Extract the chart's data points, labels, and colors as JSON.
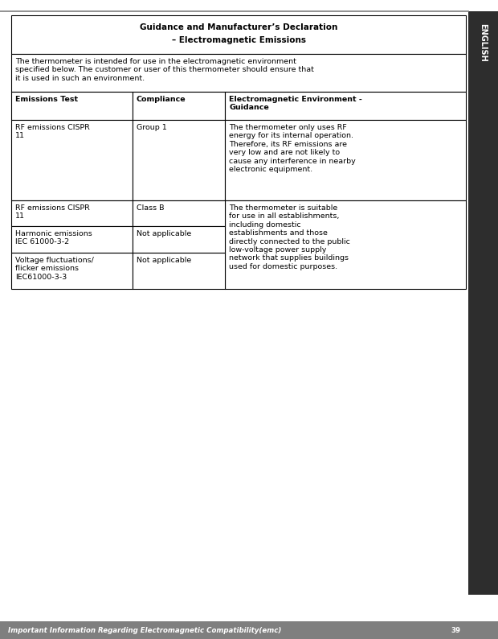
{
  "page_bg": "#ffffff",
  "footer_bg": "#7f7f7f",
  "footer_text": "Important Information Regarding Electromagnetic Compatibility(emc)",
  "footer_page_num": "39",
  "footer_text_color": "#ffffff",
  "sidebar_bg": "#2d2d2d",
  "sidebar_text": "ENGLISH",
  "sidebar_text_color": "#ffffff",
  "top_line_color": "#7f7f7f",
  "table_border_color": "#000000",
  "title_line1": "Guidance and Manufacturer’s Declaration",
  "title_line2": "– Electromagnetic Emissions",
  "intro_text_wrapped": "The thermometer is intended for use in the electromagnetic environment\nspecified below. The customer or user of this thermometer should ensure that\nit is used in such an environment.",
  "col_header_0": "Emissions Test",
  "col_header_1": "Compliance",
  "col_header_2": "Electromagnetic Environment -\nGuidance",
  "row1_c1": "RF emissions CISPR\n11",
  "row1_c2": "Group 1",
  "row1_c3": "The thermometer only uses RF\nenergy for its internal operation.\nTherefore, its RF emissions are\nvery low and are not likely to\ncause any interference in nearby\nelectronic equipment.",
  "row2_c1": "RF emissions CISPR\n11",
  "row2_c2": "Class B",
  "row3_c1": "Harmonic emissions\nIEC 61000-3-2",
  "row3_c2": "Not applicable",
  "row4_c1": "Voltage fluctuations/\nflicker emissions\nIEC61000-3-3",
  "row4_c2": "Not applicable",
  "rows234_c3": "The thermometer is suitable\nfor use in all establishments,\nincluding domestic\nestablishments and those\ndirectly connected to the public\nlow-voltage power supply\nnetwork that supplies buildings\nused for domestic purposes.",
  "font_size_title": 7.5,
  "font_size_body": 6.8,
  "font_size_footer": 6.2,
  "font_size_sidebar": 7.0
}
